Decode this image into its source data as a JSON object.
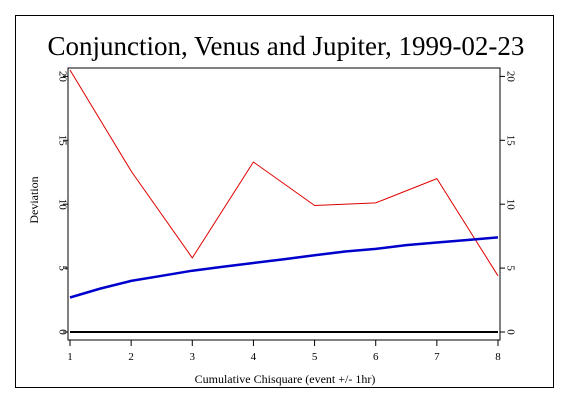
{
  "chart_data": {
    "type": "line",
    "title": "Conjunction, Venus and Jupiter, 1999-02-23",
    "xlabel": "Cumulative Chisquare (event +/- 1hr)",
    "ylabel": "Deviation",
    "xlim": [
      1,
      8
    ],
    "ylim": [
      0,
      20.5
    ],
    "x_ticks": [
      "1",
      "2",
      "3",
      "4",
      "5",
      "6",
      "7",
      "8"
    ],
    "y_ticks": [
      "0",
      "5",
      "10",
      "15",
      "20"
    ],
    "grid": false,
    "series": [
      {
        "color": "#e00000",
        "x": [
          1,
          2,
          3,
          4,
          5,
          6,
          7,
          8
        ],
        "y": [
          20.5,
          12.6,
          5.8,
          13.3,
          9.9,
          10.1,
          12.0,
          4.4
        ]
      },
      {
        "color": "#0000cc",
        "x": [
          1,
          1.5,
          2,
          2.5,
          3,
          3.5,
          4,
          4.5,
          5,
          5.5,
          6,
          6.5,
          7,
          7.5,
          8
        ],
        "y": [
          2.7,
          3.4,
          4.0,
          4.4,
          4.8,
          5.1,
          5.4,
          5.7,
          6.0,
          6.3,
          6.5,
          6.8,
          7.0,
          7.2,
          7.4
        ]
      },
      {
        "color": "#000000",
        "x": [
          1,
          8
        ],
        "y": [
          0,
          0
        ]
      }
    ]
  }
}
